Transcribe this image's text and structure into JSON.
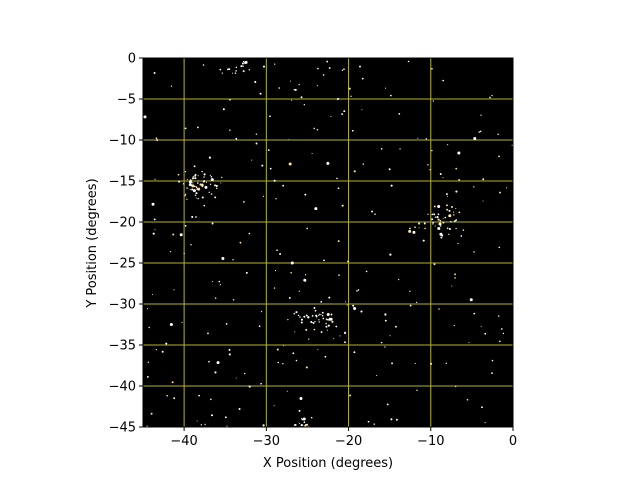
{
  "chart_data": {
    "type": "scatter",
    "title": "",
    "xlabel": "X Position (degrees)",
    "ylabel": "Y Position (degrees)",
    "xlim": [
      -45,
      0
    ],
    "ylim": [
      -45,
      0
    ],
    "x_ticks": [
      -40,
      -30,
      -20,
      -10,
      0
    ],
    "y_ticks": [
      0,
      -5,
      -10,
      -15,
      -20,
      -25,
      -30,
      -35,
      -40,
      -45
    ],
    "x_tick_labels": [
      "−40",
      "−30",
      "−20",
      "−10",
      "0"
    ],
    "y_tick_labels": [
      "0",
      "−5",
      "−10",
      "−15",
      "−20",
      "−25",
      "−30",
      "−35",
      "−40",
      "−45"
    ],
    "grid": true,
    "colors": {
      "background": "#000000",
      "grid": "#b5b52a",
      "star": "#ffffff",
      "star_warm": "#ffe6a0"
    },
    "clusters": [
      {
        "x": -38.5,
        "y": -15.5,
        "spread": 1.4,
        "count": 60
      },
      {
        "x": -8.5,
        "y": -20.0,
        "spread": 1.6,
        "count": 55
      },
      {
        "x": -24.0,
        "y": -31.5,
        "spread": 1.5,
        "count": 55
      },
      {
        "x": -25.5,
        "y": -44.3,
        "spread": 0.6,
        "count": 14
      },
      {
        "x": -33.5,
        "y": -1.2,
        "spread": 0.9,
        "count": 14
      }
    ],
    "background_star_count": 260
  }
}
